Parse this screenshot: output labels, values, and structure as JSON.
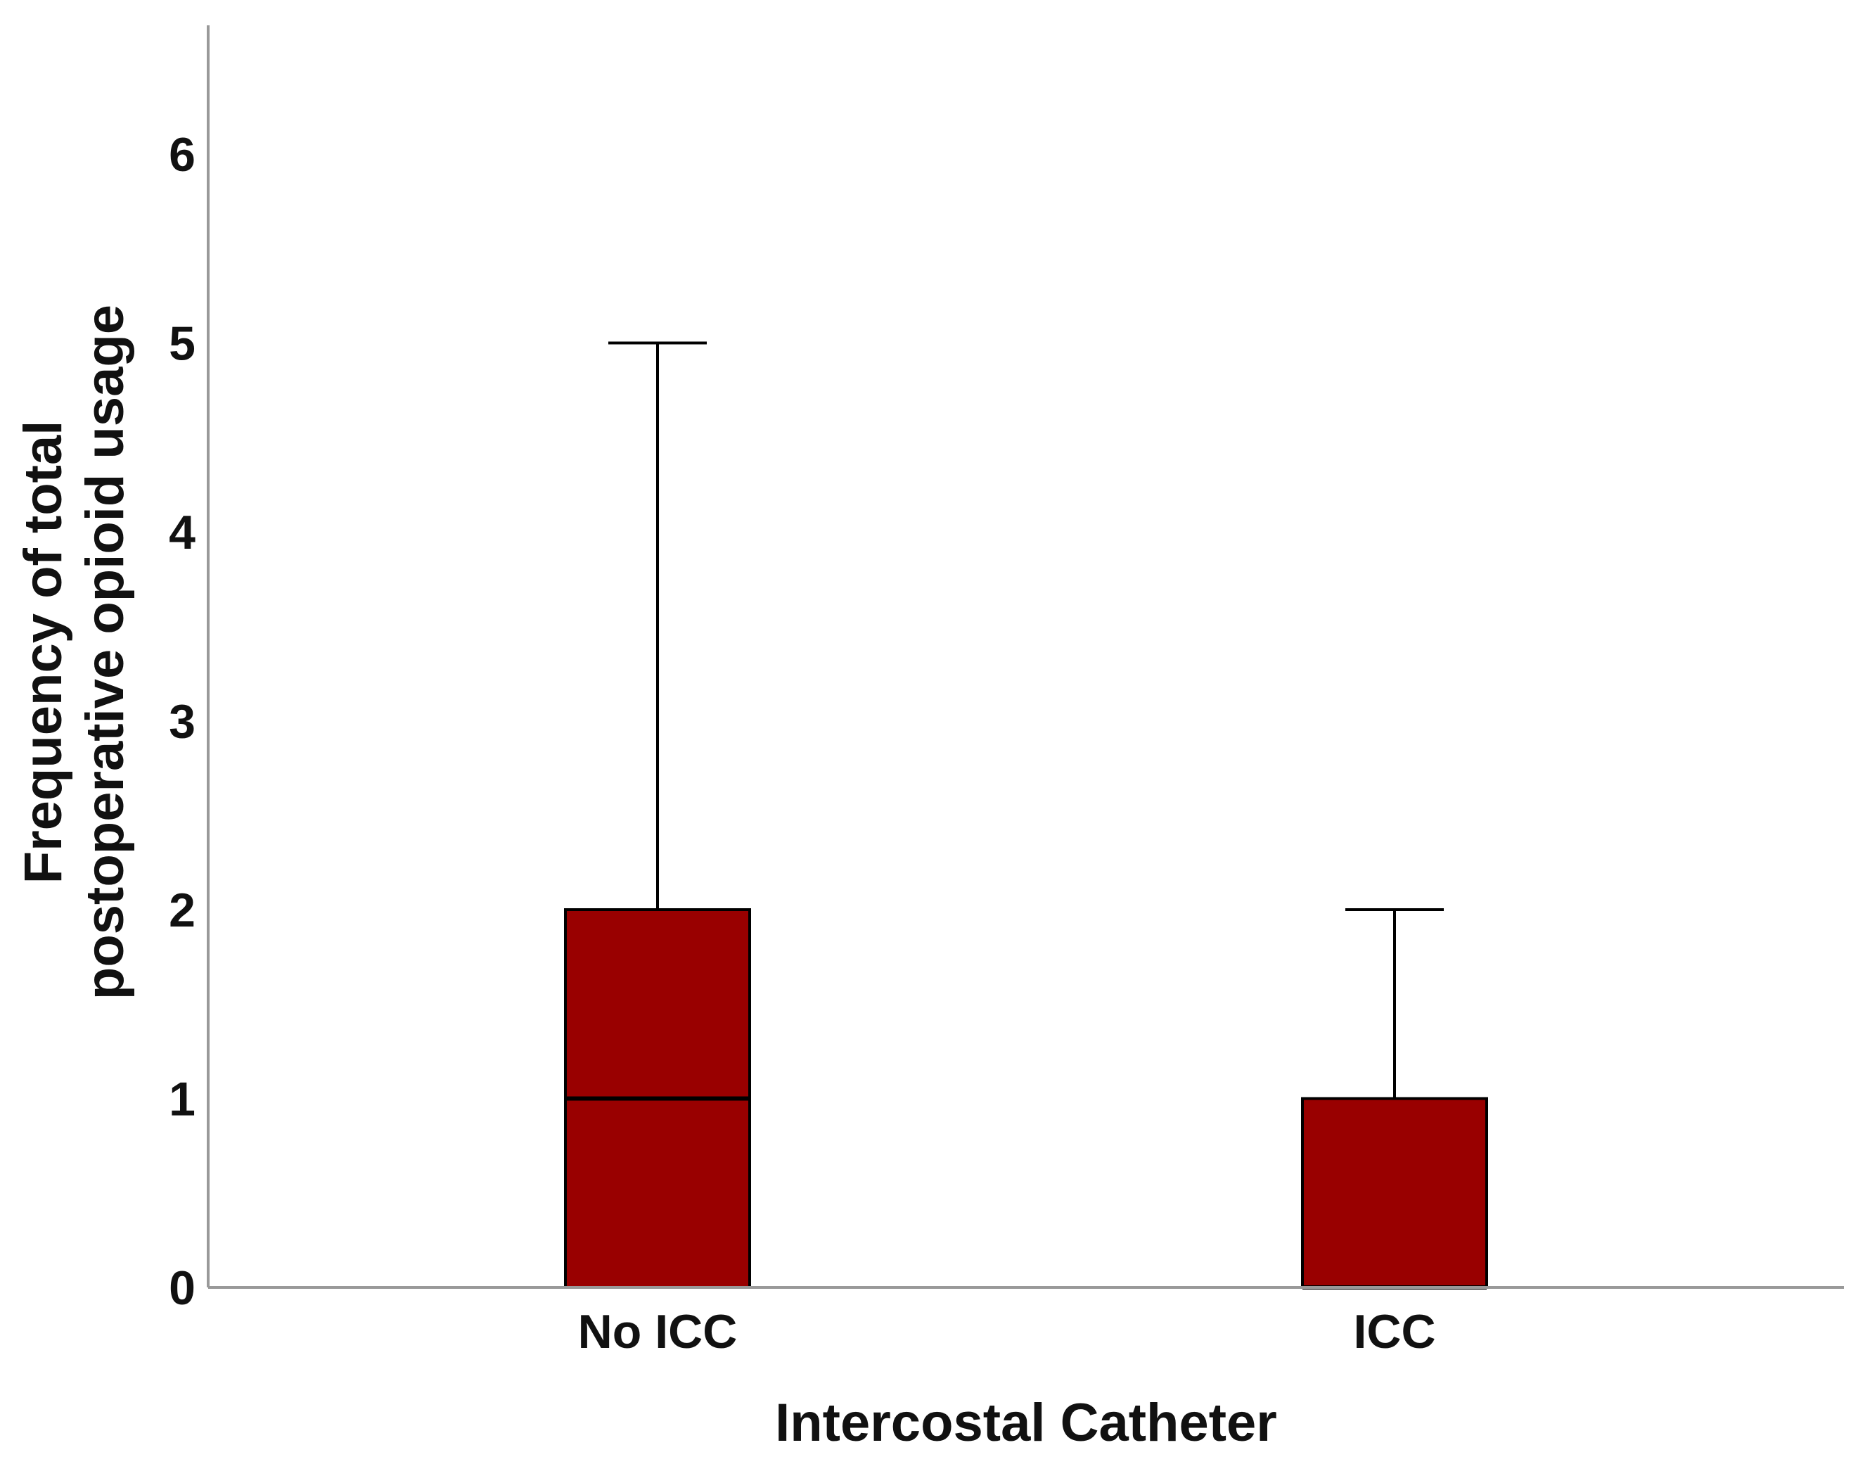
{
  "chart_data": {
    "type": "box",
    "categories": [
      "No ICC",
      "ICC"
    ],
    "boxes": [
      {
        "category": "No ICC",
        "min": 0,
        "q1": 0,
        "median": 1,
        "q3": 2,
        "max": 5
      },
      {
        "category": "ICC",
        "min": 0,
        "q1": 0,
        "median": 0,
        "q3": 1,
        "max": 2
      }
    ],
    "xlabel": "Intercostal Catheter",
    "ylabel_lines": [
      "Frequency of total",
      "postoperative opioid usage"
    ],
    "ylim": [
      0,
      6.7
    ],
    "yticks": [
      "0",
      "1",
      "2",
      "3",
      "4",
      "5",
      "6"
    ],
    "box_color": "#990000",
    "axis_color": "#999999",
    "line_color": "#000000",
    "grid": false,
    "legend": "none"
  }
}
